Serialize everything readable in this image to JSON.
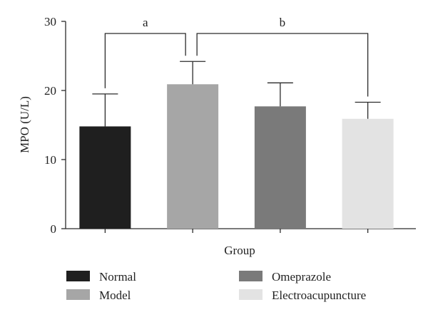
{
  "chart_data": {
    "type": "bar",
    "title": "",
    "xlabel": "Group",
    "ylabel": "MPO (U/L)",
    "ylim": [
      0,
      30
    ],
    "yticks": [
      0,
      10,
      20,
      30
    ],
    "grid": false,
    "legend_position": "bottom",
    "categories": [
      "Normal",
      "Model",
      "Omeprazole",
      "Electroacupuncture"
    ],
    "values": [
      14.8,
      20.9,
      17.7,
      15.9
    ],
    "errors": [
      4.7,
      3.3,
      3.4,
      2.4
    ],
    "colors": [
      "#1f1f1f",
      "#a6a6a6",
      "#7a7a7a",
      "#e3e3e3"
    ],
    "significance": [
      {
        "label": "a",
        "from": 0,
        "to": 1,
        "level": 26.2
      },
      {
        "label": "b",
        "from": 1,
        "to": 3,
        "level": 26.2
      }
    ]
  }
}
